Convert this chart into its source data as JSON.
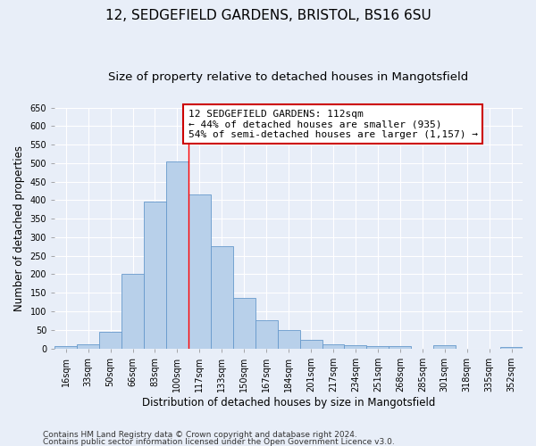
{
  "title": "12, SEDGEFIELD GARDENS, BRISTOL, BS16 6SU",
  "subtitle": "Size of property relative to detached houses in Mangotsfield",
  "xlabel": "Distribution of detached houses by size in Mangotsfield",
  "ylabel": "Number of detached properties",
  "categories": [
    "16sqm",
    "33sqm",
    "50sqm",
    "66sqm",
    "83sqm",
    "100sqm",
    "117sqm",
    "133sqm",
    "150sqm",
    "167sqm",
    "184sqm",
    "201sqm",
    "217sqm",
    "234sqm",
    "251sqm",
    "268sqm",
    "285sqm",
    "301sqm",
    "318sqm",
    "335sqm",
    "352sqm"
  ],
  "values": [
    5,
    10,
    45,
    200,
    395,
    505,
    415,
    275,
    137,
    75,
    50,
    22,
    10,
    8,
    7,
    5,
    0,
    8,
    0,
    0,
    3
  ],
  "bar_color": "#b8d0ea",
  "bar_edge_color": "#6699cc",
  "bar_width": 1.0,
  "property_line_x": 5.5,
  "annotation_text": "12 SEDGEFIELD GARDENS: 112sqm\n← 44% of detached houses are smaller (935)\n54% of semi-detached houses are larger (1,157) →",
  "annotation_box_color": "#ffffff",
  "annotation_box_edge": "#cc0000",
  "ylim": [
    0,
    650
  ],
  "yticks": [
    0,
    50,
    100,
    150,
    200,
    250,
    300,
    350,
    400,
    450,
    500,
    550,
    600,
    650
  ],
  "bg_color": "#e8eef8",
  "grid_color": "#ffffff",
  "footer1": "Contains HM Land Registry data © Crown copyright and database right 2024.",
  "footer2": "Contains public sector information licensed under the Open Government Licence v3.0.",
  "title_fontsize": 11,
  "subtitle_fontsize": 9.5,
  "axis_label_fontsize": 8.5,
  "tick_fontsize": 7,
  "annotation_fontsize": 8,
  "footer_fontsize": 6.5
}
